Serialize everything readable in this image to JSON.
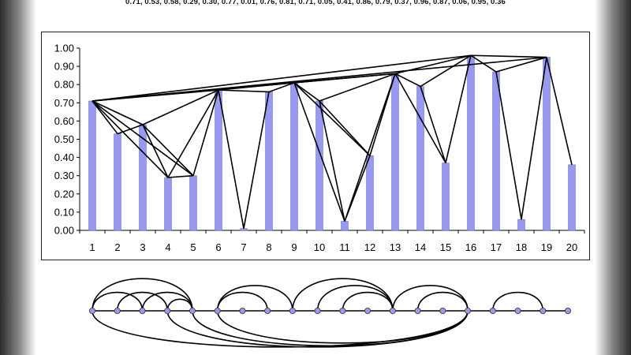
{
  "values_header": "0.71, 0.53, 0.58, 0.29, 0.30, 0.77, 0.01, 0.76, 0.81, 0.71, 0.05, 0.41, 0.86, 0.79, 0.37, 0.96, 0.87, 0.06, 0.95, 0.36",
  "colors": {
    "bar_fill": "#9999ee",
    "bar_stroke": "#6666cc",
    "line": "#000000",
    "node_fill": "#9999ee",
    "shade": "#2a2a2a"
  },
  "chart_data": [
    {
      "type": "bar",
      "categories": [
        "1",
        "2",
        "3",
        "4",
        "5",
        "6",
        "7",
        "8",
        "9",
        "10",
        "11",
        "12",
        "13",
        "14",
        "15",
        "16",
        "17",
        "18",
        "19",
        "20"
      ],
      "values": [
        0.71,
        0.53,
        0.58,
        0.29,
        0.3,
        0.77,
        0.01,
        0.76,
        0.81,
        0.71,
        0.05,
        0.41,
        0.86,
        0.79,
        0.37,
        0.96,
        0.87,
        0.06,
        0.95,
        0.36
      ],
      "ylim": [
        0,
        1.0
      ],
      "yticks": [
        "0.00",
        "0.10",
        "0.20",
        "0.30",
        "0.40",
        "0.50",
        "0.60",
        "0.70",
        "0.80",
        "0.90",
        "1.00"
      ],
      "grid": false,
      "visibility_edges": [
        [
          1,
          2
        ],
        [
          1,
          3
        ],
        [
          1,
          4
        ],
        [
          1,
          5
        ],
        [
          1,
          6
        ],
        [
          1,
          9
        ],
        [
          1,
          13
        ],
        [
          1,
          16
        ],
        [
          1,
          19
        ],
        [
          2,
          3
        ],
        [
          3,
          4
        ],
        [
          3,
          5
        ],
        [
          3,
          6
        ],
        [
          4,
          5
        ],
        [
          4,
          6
        ],
        [
          5,
          6
        ],
        [
          6,
          7
        ],
        [
          6,
          8
        ],
        [
          6,
          9
        ],
        [
          7,
          8
        ],
        [
          8,
          9
        ],
        [
          9,
          10
        ],
        [
          9,
          11
        ],
        [
          9,
          12
        ],
        [
          9,
          13
        ],
        [
          10,
          11
        ],
        [
          10,
          12
        ],
        [
          10,
          13
        ],
        [
          11,
          12
        ],
        [
          11,
          13
        ],
        [
          12,
          13
        ],
        [
          13,
          14
        ],
        [
          13,
          15
        ],
        [
          13,
          16
        ],
        [
          14,
          15
        ],
        [
          14,
          16
        ],
        [
          15,
          16
        ],
        [
          16,
          17
        ],
        [
          16,
          19
        ],
        [
          17,
          18
        ],
        [
          17,
          19
        ],
        [
          18,
          19
        ],
        [
          19,
          20
        ]
      ]
    },
    {
      "type": "arc-diagram",
      "nodes": 20,
      "upper_arcs": [
        [
          1,
          5
        ],
        [
          1,
          3
        ],
        [
          3,
          5
        ],
        [
          2,
          4
        ],
        [
          4,
          5
        ],
        [
          6,
          9
        ],
        [
          6,
          8
        ],
        [
          9,
          13
        ],
        [
          10,
          13
        ],
        [
          11,
          13
        ],
        [
          13,
          16
        ],
        [
          14,
          16
        ],
        [
          17,
          19
        ]
      ],
      "lower_arcs": [
        [
          1,
          16
        ],
        [
          4,
          16
        ],
        [
          5,
          16
        ],
        [
          6,
          16
        ]
      ]
    }
  ]
}
